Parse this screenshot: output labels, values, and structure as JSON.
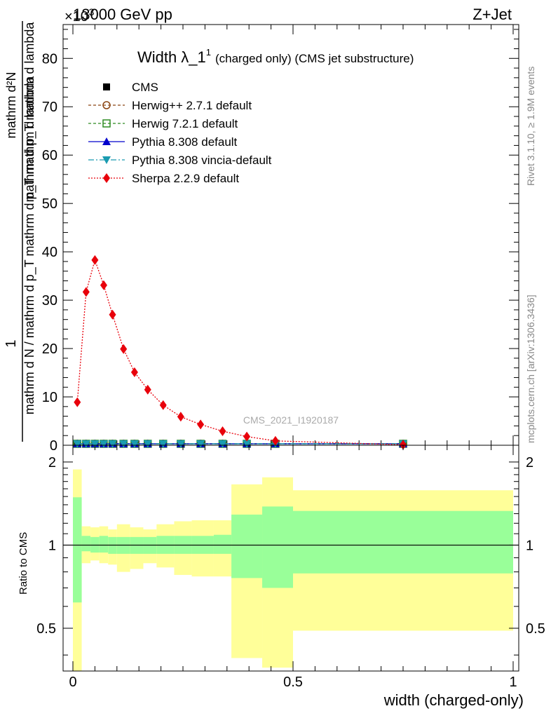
{
  "header": {
    "collision": "13000 GeV pp",
    "process": "Z+Jet",
    "exponent": "×10",
    "exponent_power": "-3"
  },
  "side_labels": {
    "rivet": "Rivet 3.1.10, ≥ 1.9M events",
    "mcplots": "mcplots.cern.ch [arXiv:1306.3436]"
  },
  "watermark": "CMS_2021_I1920187",
  "chart_data": [
    {
      "type": "line",
      "title": "Width λ_1¹ (charged only) (CMS jet substructure)",
      "title_main": "Width",
      "title_lambda": "λ_1",
      "title_sup": "1",
      "title_rest": "(charged only) (CMS jet substructure)",
      "ylabel_top": "1",
      "ylabel_bottom": "mathrm d N / mathrm d p_T mathrm d p_T mathrm d lambda",
      "ylabel_num": "mathrm d²N",
      "ylabel_den": "mathrm d p_T mathrm d lambda",
      "xlim": [
        0,
        1
      ],
      "ylim": [
        0,
        87
      ],
      "y_ticks": [
        0,
        10,
        20,
        30,
        40,
        50,
        60,
        70,
        80
      ],
      "legend_position": "top-left",
      "series": [
        {
          "name": "CMS",
          "color": "#000000",
          "marker": "square",
          "x": [
            0.01,
            0.03,
            0.05,
            0.07,
            0.09,
            0.115,
            0.14,
            0.17,
            0.205,
            0.245,
            0.29,
            0.34,
            0.395,
            0.46,
            0.75
          ],
          "y": [
            0.3,
            0.3,
            0.3,
            0.3,
            0.3,
            0.3,
            0.3,
            0.3,
            0.3,
            0.3,
            0.3,
            0.3,
            0.3,
            0.3,
            0.3
          ]
        },
        {
          "name": "Herwig++ 2.7.1 default",
          "color": "#8b4513",
          "marker": "circle-open",
          "x": [
            0.01,
            0.03,
            0.05,
            0.07,
            0.09,
            0.115,
            0.14,
            0.17,
            0.205,
            0.245,
            0.29,
            0.34,
            0.395,
            0.46,
            0.75
          ],
          "y": [
            0.3,
            0.3,
            0.3,
            0.3,
            0.3,
            0.3,
            0.3,
            0.3,
            0.3,
            0.3,
            0.3,
            0.3,
            0.3,
            0.3,
            0.3
          ]
        },
        {
          "name": "Herwig 7.2.1 default",
          "color": "#2e8b22",
          "marker": "square-open",
          "x": [
            0.01,
            0.03,
            0.05,
            0.07,
            0.09,
            0.115,
            0.14,
            0.17,
            0.205,
            0.245,
            0.29,
            0.34,
            0.395,
            0.46,
            0.75
          ],
          "y": [
            0.3,
            0.3,
            0.3,
            0.3,
            0.3,
            0.3,
            0.3,
            0.3,
            0.3,
            0.3,
            0.3,
            0.3,
            0.3,
            0.3,
            0.3
          ]
        },
        {
          "name": "Pythia 8.308 default",
          "color": "#0000cc",
          "marker": "triangle-up",
          "x": [
            0.01,
            0.03,
            0.05,
            0.07,
            0.09,
            0.115,
            0.14,
            0.17,
            0.205,
            0.245,
            0.29,
            0.34,
            0.395,
            0.46,
            0.75
          ],
          "y": [
            0.3,
            0.3,
            0.3,
            0.3,
            0.3,
            0.3,
            0.3,
            0.3,
            0.3,
            0.3,
            0.3,
            0.3,
            0.3,
            0.3,
            0.3
          ]
        },
        {
          "name": "Pythia 8.308 vincia-default",
          "color": "#1a9bb0",
          "marker": "triangle-down",
          "x": [
            0.01,
            0.03,
            0.05,
            0.07,
            0.09,
            0.115,
            0.14,
            0.17,
            0.205,
            0.245,
            0.29,
            0.34,
            0.395,
            0.46,
            0.75
          ],
          "y": [
            0.3,
            0.3,
            0.3,
            0.3,
            0.3,
            0.3,
            0.3,
            0.3,
            0.3,
            0.3,
            0.3,
            0.3,
            0.3,
            0.3,
            0.3
          ]
        },
        {
          "name": "Sherpa 2.2.9 default",
          "color": "#e8000b",
          "marker": "diamond",
          "x": [
            0.01,
            0.03,
            0.05,
            0.07,
            0.09,
            0.115,
            0.14,
            0.17,
            0.205,
            0.245,
            0.29,
            0.34,
            0.395,
            0.46,
            0.75
          ],
          "y": [
            8.9,
            31.7,
            38.3,
            33.1,
            27.0,
            19.9,
            15.1,
            11.5,
            8.3,
            5.9,
            4.3,
            2.9,
            1.8,
            0.9,
            0.1
          ]
        }
      ]
    },
    {
      "type": "area",
      "ylabel": "Ratio to CMS",
      "xlabel": "width (charged-only)",
      "xlim": [
        0,
        1
      ],
      "ylim": [
        0.35,
        2.3
      ],
      "x_ticks": [
        0,
        0.5,
        1
      ],
      "y_ticks": [
        0.5,
        1,
        2
      ],
      "bin_edges": [
        0,
        0.02,
        0.04,
        0.06,
        0.08,
        0.1,
        0.13,
        0.16,
        0.19,
        0.23,
        0.27,
        0.32,
        0.36,
        0.43,
        0.5,
        1.0
      ],
      "inner_band": {
        "color": "#99ff99",
        "lower": [
          0.62,
          0.95,
          0.94,
          0.94,
          0.93,
          0.93,
          0.93,
          0.93,
          0.93,
          0.93,
          0.93,
          0.93,
          0.76,
          0.7,
          0.79
        ],
        "upper": [
          1.49,
          1.08,
          1.07,
          1.08,
          1.07,
          1.07,
          1.07,
          1.07,
          1.08,
          1.08,
          1.08,
          1.09,
          1.29,
          1.38,
          1.33
        ]
      },
      "outer_band": {
        "color": "#ffff99",
        "lower": [
          0.3,
          0.86,
          0.88,
          0.86,
          0.85,
          0.8,
          0.82,
          0.86,
          0.83,
          0.78,
          0.77,
          0.77,
          0.39,
          0.36,
          0.49
        ],
        "upper": [
          1.88,
          1.17,
          1.16,
          1.17,
          1.14,
          1.19,
          1.16,
          1.14,
          1.19,
          1.22,
          1.23,
          1.23,
          1.66,
          1.76,
          1.58
        ]
      },
      "reference_line": 1
    }
  ]
}
